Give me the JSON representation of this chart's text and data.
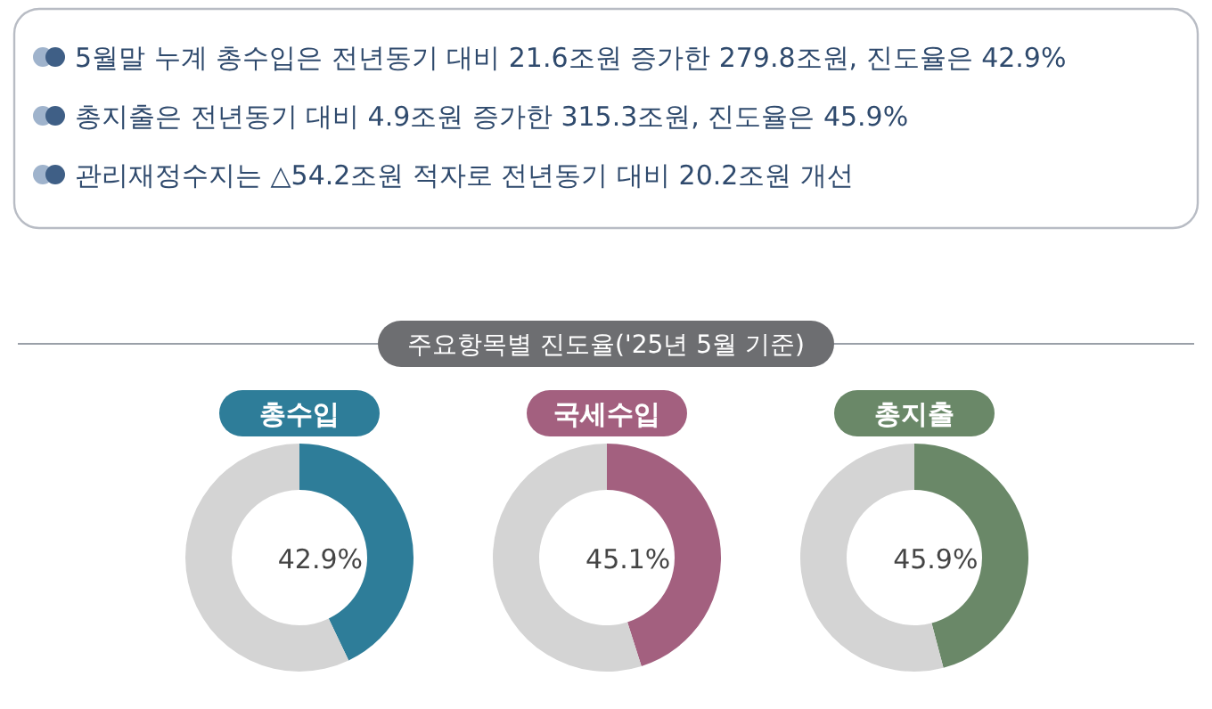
{
  "chart_data": [
    {
      "type": "other",
      "annotations": [
        "5월말 누계 총수입은 전년동기 대비 21.6조원 증가한 279.8조원, 진도율은 42.9%",
        "총지출은 전년동기 대비 4.9조원 증가한 315.3조원, 진도율은 45.9%",
        "관리재정수지는 △54.2조원 적자로 전년동기 대비 20.2조원 개선"
      ]
    },
    {
      "type": "other",
      "title": "주요항목별 진도율('25년 5월 기준)"
    },
    {
      "type": "donut",
      "title": "총수입",
      "categories": [
        null,
        null
      ],
      "values": [
        42.9,
        57.1
      ],
      "colors": [
        "#2e7d99",
        "#d4d4d4"
      ],
      "value_labels": [
        "42.9%",
        null
      ]
    },
    {
      "type": "donut",
      "title": "국세수입",
      "categories": [
        null,
        null
      ],
      "values": [
        45.1,
        54.9
      ],
      "colors": [
        "#a3607f",
        "#d4d4d4"
      ],
      "value_labels": [
        "45.1%",
        null
      ]
    },
    {
      "type": "donut",
      "title": "총지출",
      "categories": [
        null,
        null
      ],
      "values": [
        45.9,
        54.1
      ],
      "colors": [
        "#6a8868",
        "#d4d4d4"
      ],
      "value_labels": [
        "45.9%",
        null
      ]
    }
  ]
}
